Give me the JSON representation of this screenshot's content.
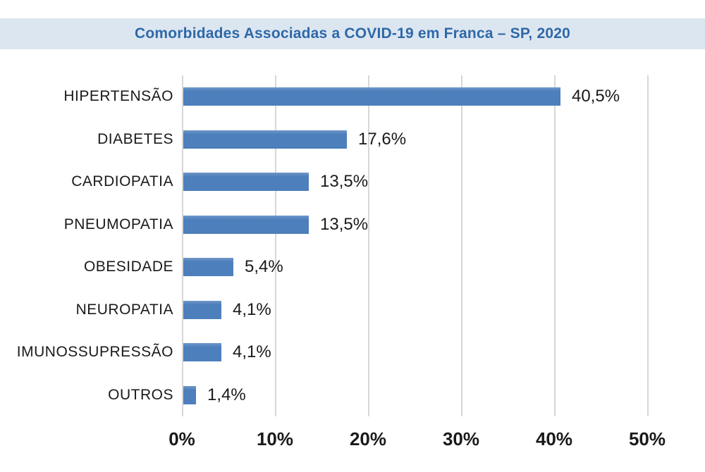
{
  "header": {
    "title": "Comorbidades Associadas a COVID-19 em Franca – SP, 2020"
  },
  "colors": {
    "banner_bg": "#dce6f1",
    "title_text": "#2e68a8",
    "bar_fill": "#4c7fbb",
    "gridline": "#d7d7d7",
    "label_text": "#1a1a1a"
  },
  "chart_data": {
    "type": "bar",
    "orientation": "horizontal",
    "title": "Comorbidades Associadas a COVID-19 em Franca – SP, 2020",
    "categories": [
      "HIPERTENSÃO",
      "DIABETES",
      "CARDIOPATIA",
      "PNEUMOPATIA",
      "OBESIDADE",
      "NEUROPATIA",
      "IMUNOSSUPRESSÃO",
      "OUTROS"
    ],
    "values": [
      40.5,
      17.6,
      13.5,
      13.5,
      5.4,
      4.1,
      4.1,
      1.4
    ],
    "value_labels": [
      "40,5%",
      "17,6%",
      "13,5%",
      "13,5%",
      "5,4%",
      "4,1%",
      "4,1%",
      "1,4%"
    ],
    "xlabel": "",
    "ylabel": "",
    "xlim": [
      0,
      50
    ],
    "x_ticks": [
      "0%",
      "10%",
      "20%",
      "30%",
      "40%",
      "50%"
    ],
    "grid": "vertical",
    "legend": "none",
    "data_labels": "outside-end",
    "decimal_separator": ","
  }
}
